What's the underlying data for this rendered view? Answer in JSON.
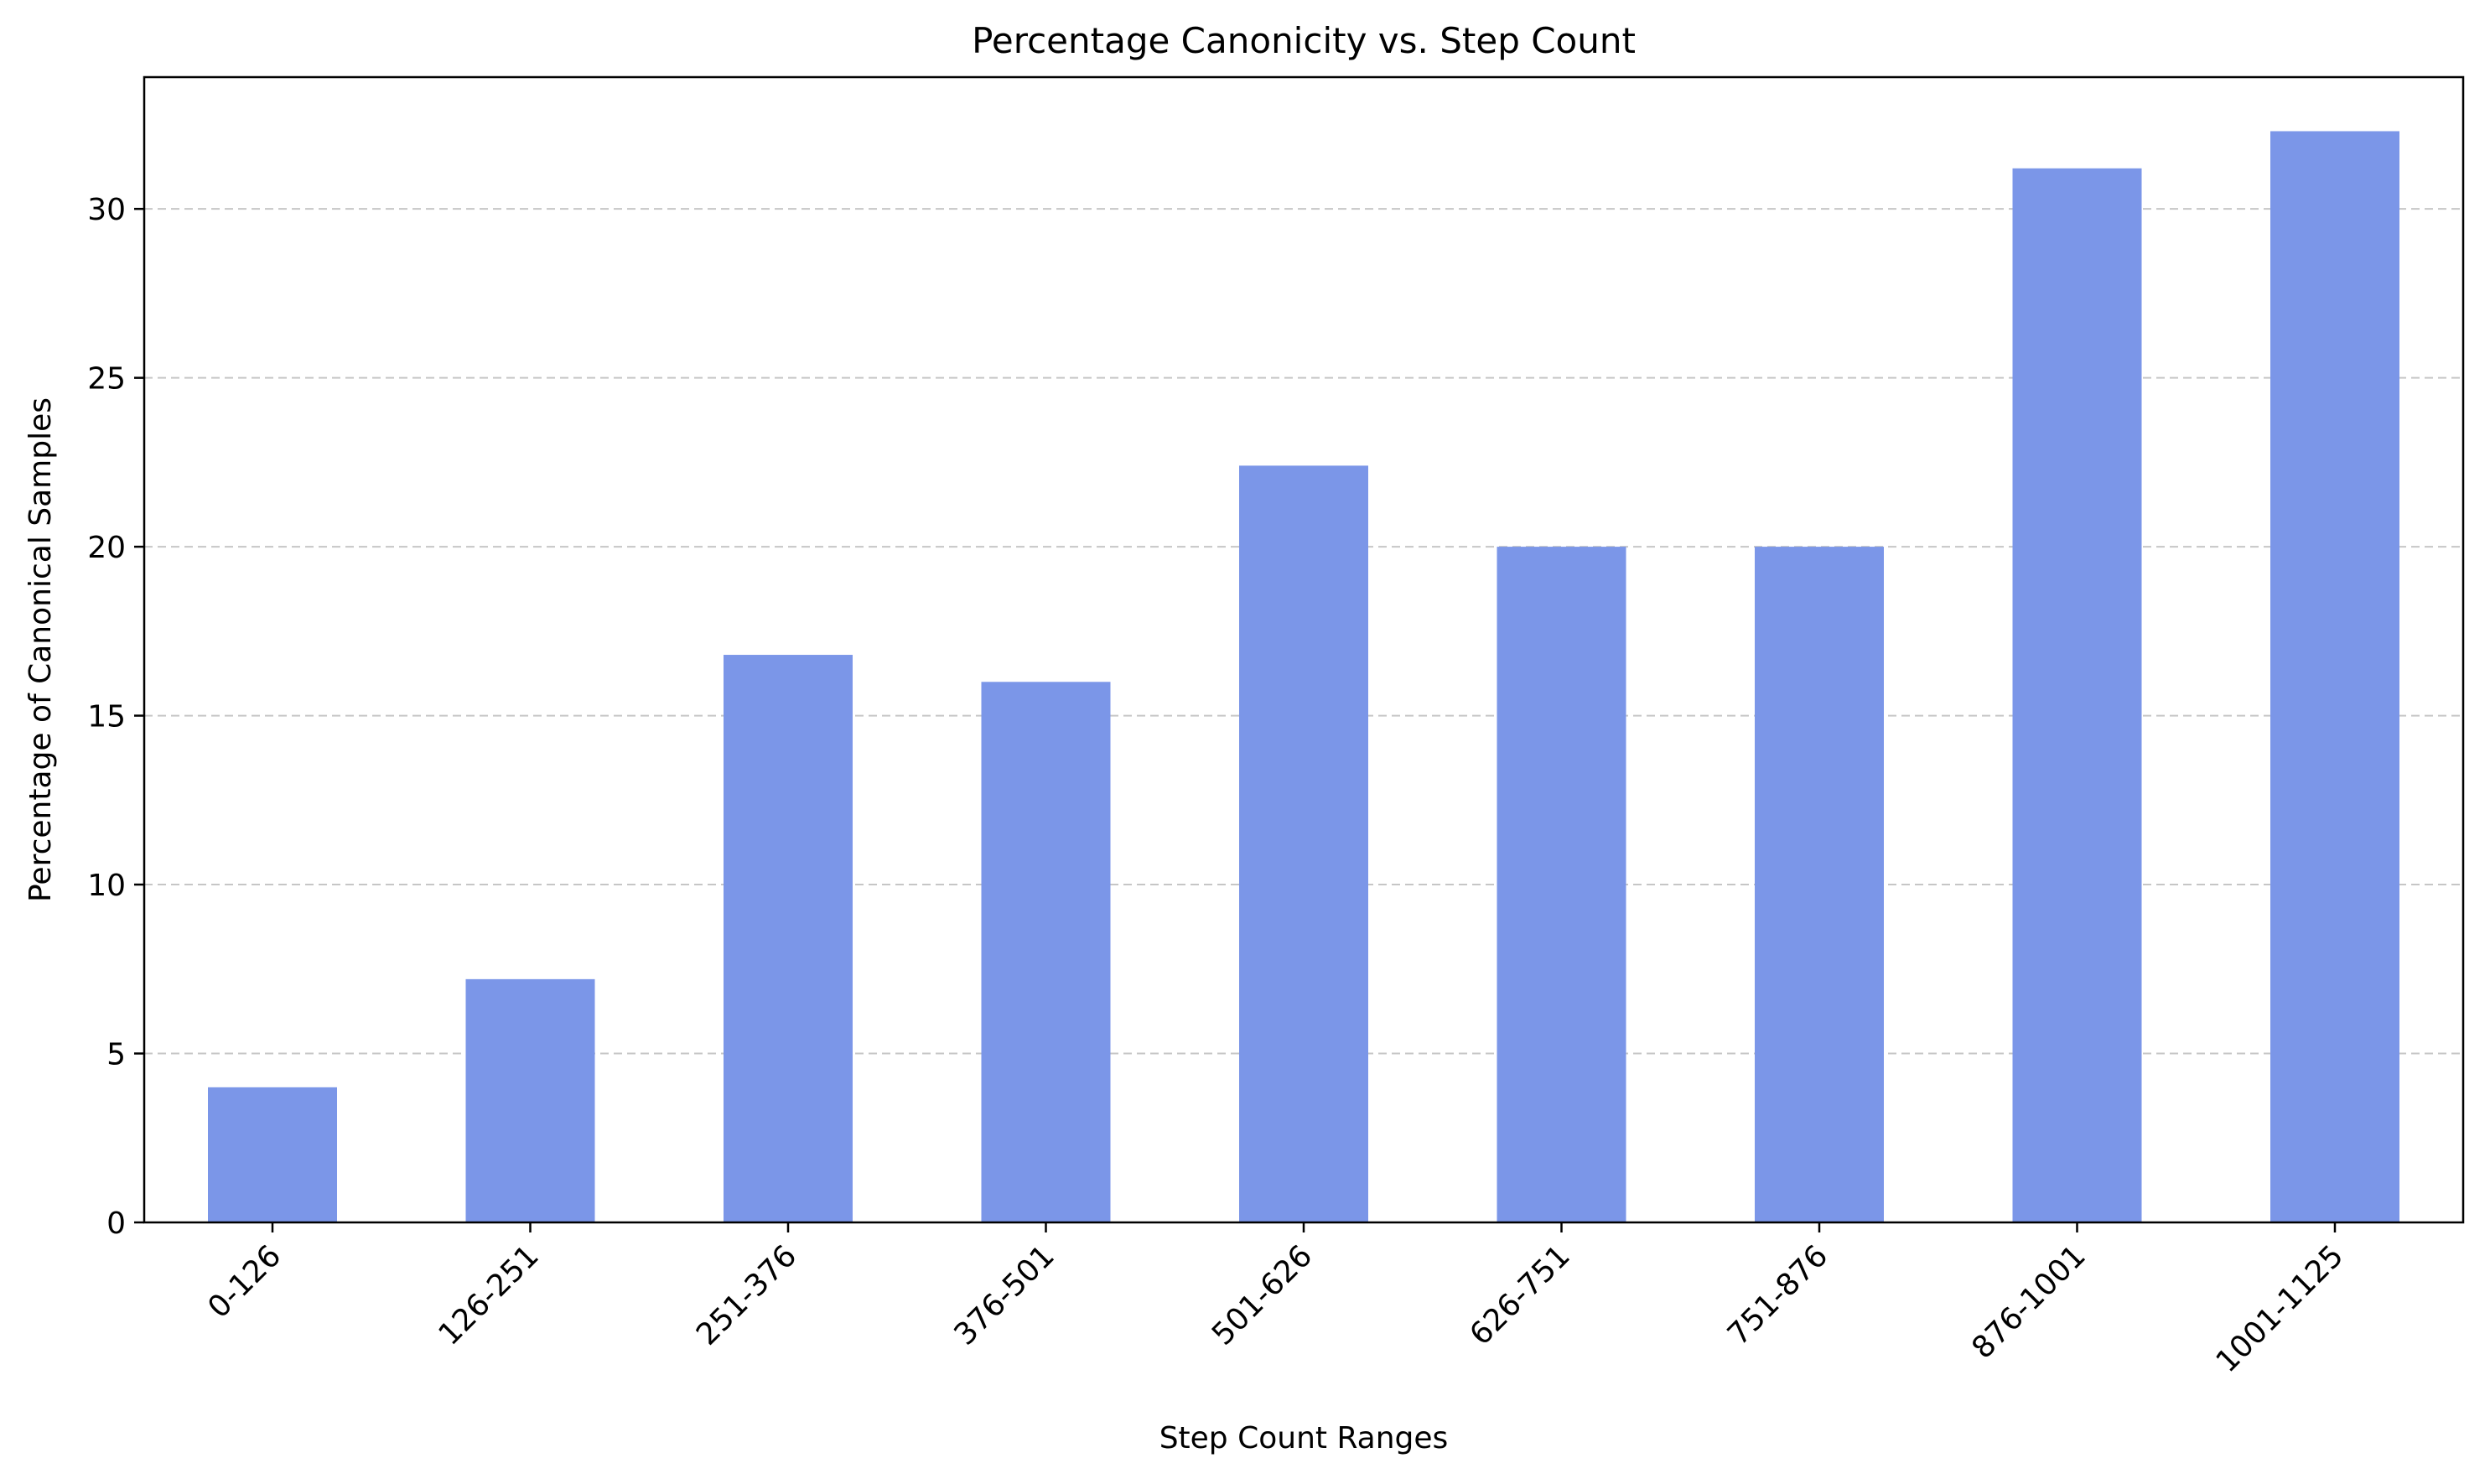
{
  "chart_data": {
    "type": "bar",
    "title": "Percentage Canonicity vs. Step Count",
    "xlabel": "Step Count Ranges",
    "ylabel": "Percentage of Canonical Samples",
    "categories": [
      "0-126",
      "126-251",
      "251-376",
      "376-501",
      "501-626",
      "626-751",
      "751-876",
      "876-1001",
      "1001-1125"
    ],
    "values": [
      4.0,
      7.2,
      16.8,
      16.0,
      22.4,
      20.0,
      20.0,
      31.2,
      32.3
    ],
    "ylim": [
      0,
      33.9
    ],
    "yticks": [
      0,
      5,
      10,
      15,
      20,
      25,
      30
    ],
    "grid": "y, dashed",
    "bar_color": "#7b96e8",
    "grid_color": "#c6c6c6"
  }
}
